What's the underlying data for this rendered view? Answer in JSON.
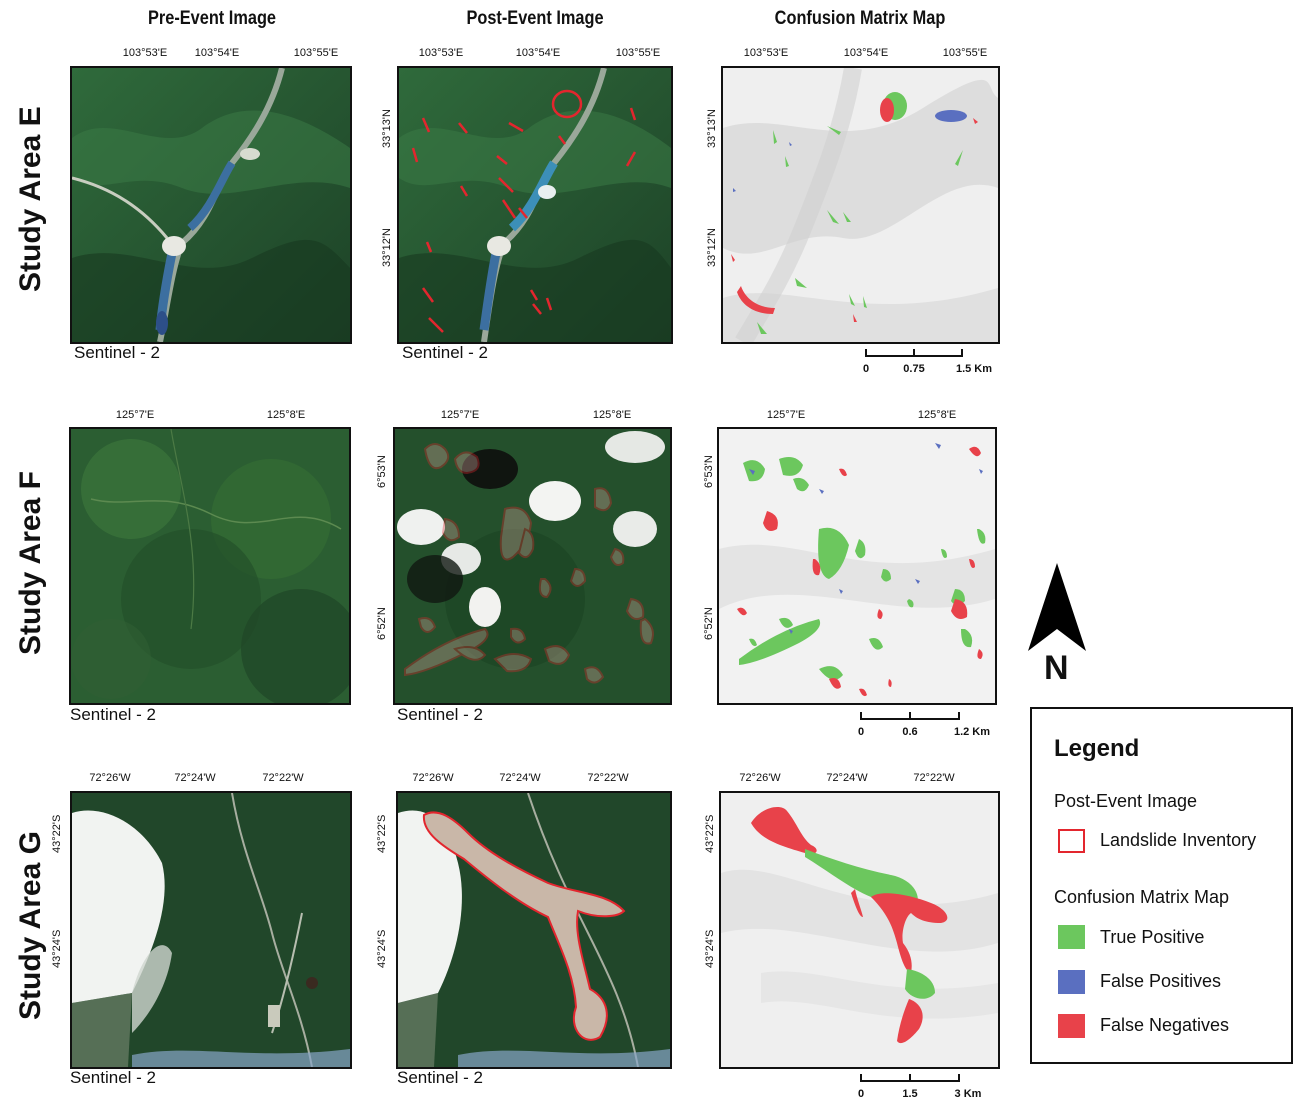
{
  "columns": [
    "Pre-Event Image",
    "Post-Event Image",
    "Confusion Matrix Map"
  ],
  "rows": [
    {
      "label": "Study Area E",
      "lon_ticks": [
        "103°53'E",
        "103°54'E",
        "103°55'E"
      ],
      "lat_ticks": [
        "33°13'N",
        "33°12'N"
      ],
      "source": "Sentinel - 2",
      "scale": [
        "0",
        "0.75",
        "1.5 Km"
      ]
    },
    {
      "label": "Study Area F",
      "lon_ticks": [
        "125°7'E",
        "125°8'E"
      ],
      "lat_ticks": [
        "6°53'N",
        "6°52'N"
      ],
      "source": "Sentinel - 2",
      "scale": [
        "0",
        "0.6",
        "1.2 Km"
      ]
    },
    {
      "label": "Study Area G",
      "lon_ticks": [
        "72°26'W",
        "72°24'W",
        "72°22'W"
      ],
      "lat_ticks": [
        "43°22'S",
        "43°24'S"
      ],
      "source": "Sentinel - 2",
      "scale": [
        "0",
        "1.5",
        "3 Km"
      ]
    }
  ],
  "north_label": "N",
  "legend": {
    "title": "Legend",
    "post_event_heading": "Post-Event Image",
    "inventory_label": "Landslide Inventory",
    "confusion_heading": "Confusion Matrix Map",
    "tp_label": "True Positive",
    "fp_label": "False Positives",
    "fn_label": "False Negatives"
  },
  "colors": {
    "true_positive": "#6cc75e",
    "false_positive": "#5a6fc0",
    "false_negative": "#e8424a",
    "inventory_outline": "#e3262e",
    "forest": "#2a5a34",
    "hillshade": "#e9e9e9"
  }
}
